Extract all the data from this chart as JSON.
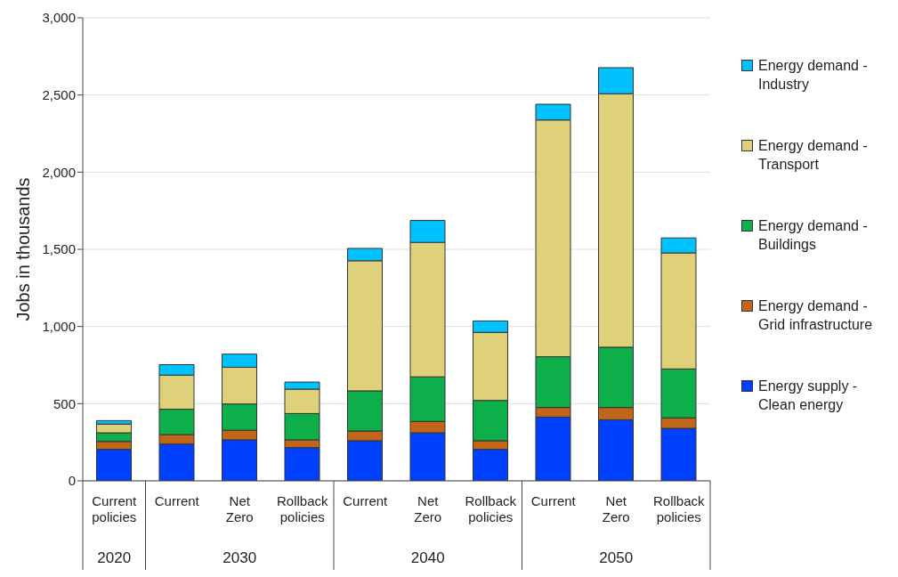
{
  "chart_data": {
    "type": "bar",
    "stacked": true,
    "ylabel": "Jobs in thousands",
    "categories": [
      "Current policies",
      "Current",
      "Net Zero",
      "Rollback policies",
      "Current",
      "Net Zero",
      "Rollback policies",
      "Current",
      "Net Zero",
      "Rollback policies"
    ],
    "annotations": [
      "2020",
      "2030",
      "2040",
      "2050"
    ],
    "series": [
      {
        "name": "Energy supply - Clean energy",
        "color": "#0040ff",
        "values": [
          204,
          238,
          266,
          215,
          260,
          311,
          204,
          413,
          396,
          340
        ]
      },
      {
        "name": "Energy demand - Grid infrastructure",
        "color": "#c0651a",
        "values": [
          51,
          62,
          62,
          51,
          63,
          74,
          56,
          62,
          79,
          68
        ]
      },
      {
        "name": "Energy demand - Buildings",
        "color": "#0daf4a",
        "values": [
          56,
          164,
          170,
          170,
          260,
          289,
          261,
          329,
          391,
          317
        ]
      },
      {
        "name": "Energy demand - Transport",
        "color": "#dfd07a",
        "values": [
          57,
          221,
          238,
          158,
          843,
          871,
          441,
          1534,
          1642,
          752
        ]
      },
      {
        "name": "Energy demand - Industry",
        "color": "#00c2ff",
        "values": [
          22,
          68,
          85,
          46,
          80,
          142,
          74,
          102,
          169,
          97
        ]
      }
    ],
    "ylim": [
      0,
      3000
    ],
    "yticks": [
      0,
      500,
      {
        "value": 1000,
        "label": "1,000"
      },
      {
        "value": 1500,
        "label": "1,500"
      },
      {
        "value": 2000,
        "label": "2,000"
      },
      {
        "value": 2500,
        "label": "2,500"
      },
      {
        "value": 3000,
        "label": "3,000"
      }
    ],
    "grid": "y",
    "legend": "right"
  }
}
